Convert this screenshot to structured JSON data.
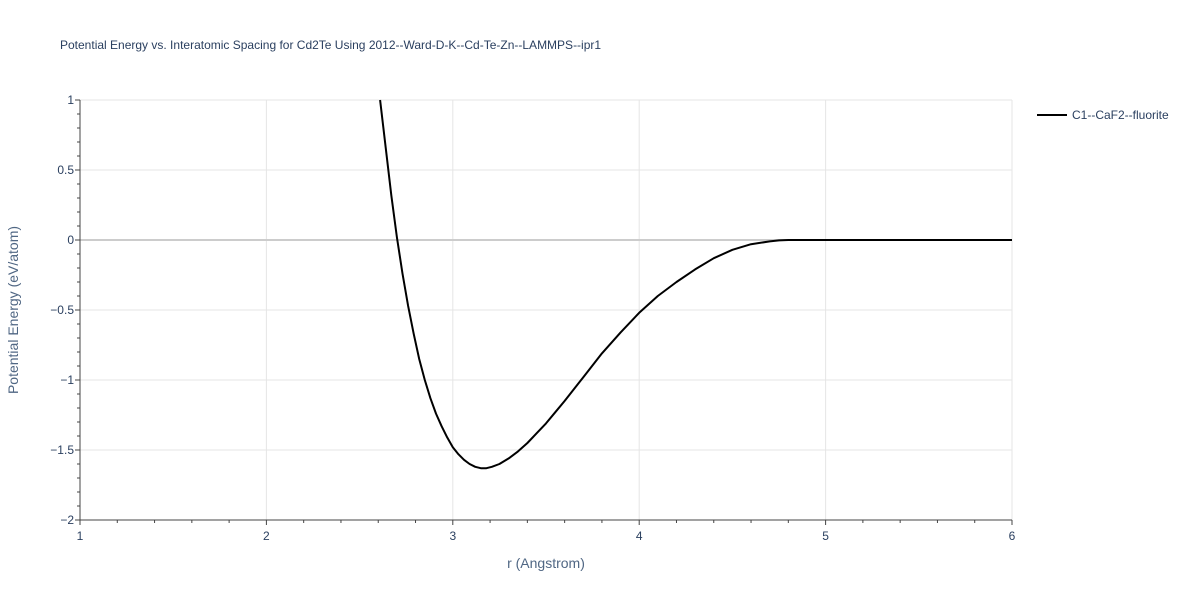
{
  "chart_data": {
    "type": "line",
    "title": "Potential Energy vs. Interatomic Spacing for Cd2Te Using 2012--Ward-D-K--Cd-Te-Zn--LAMMPS--ipr1",
    "xlabel": "r (Angstrom)",
    "ylabel": "Potential Energy (eV/atom)",
    "xlim": [
      1,
      6
    ],
    "ylim": [
      -2,
      1
    ],
    "x_ticks": [
      1,
      2,
      3,
      4,
      5,
      6
    ],
    "x_tick_labels": [
      "1",
      "2",
      "3",
      "4",
      "5",
      "6"
    ],
    "y_ticks": [
      -2,
      -1.5,
      -1,
      -0.5,
      0,
      0.5,
      1
    ],
    "y_tick_labels": [
      "−2",
      "−1.5",
      "−1",
      "−0.5",
      "0",
      "0.5",
      "1"
    ],
    "grid": true,
    "legend_position": "top-right",
    "series": [
      {
        "name": "C1--CaF2--fluorite",
        "color": "#000000",
        "x": [
          2.61,
          2.64,
          2.67,
          2.7,
          2.73,
          2.76,
          2.79,
          2.82,
          2.85,
          2.88,
          2.91,
          2.94,
          2.97,
          3.0,
          3.03,
          3.06,
          3.09,
          3.12,
          3.15,
          3.18,
          3.21,
          3.25,
          3.3,
          3.35,
          3.4,
          3.45,
          3.5,
          3.55,
          3.6,
          3.7,
          3.8,
          3.9,
          4.0,
          4.1,
          4.2,
          4.3,
          4.4,
          4.5,
          4.6,
          4.7,
          4.75,
          4.8,
          4.85,
          4.9,
          5.0,
          5.2,
          5.4,
          5.6,
          5.8,
          6.0
        ],
        "y": [
          1.0,
          0.66,
          0.32,
          0.02,
          -0.24,
          -0.47,
          -0.67,
          -0.85,
          -1.0,
          -1.13,
          -1.24,
          -1.33,
          -1.41,
          -1.48,
          -1.53,
          -1.57,
          -1.6,
          -1.62,
          -1.63,
          -1.63,
          -1.62,
          -1.6,
          -1.56,
          -1.51,
          -1.45,
          -1.38,
          -1.31,
          -1.23,
          -1.15,
          -0.98,
          -0.81,
          -0.66,
          -0.52,
          -0.4,
          -0.3,
          -0.21,
          -0.13,
          -0.07,
          -0.03,
          -0.01,
          -0.003,
          0.0,
          0.0,
          0.0,
          0.0,
          0.0,
          0.0,
          0.0,
          0.0,
          0.0
        ]
      }
    ]
  }
}
